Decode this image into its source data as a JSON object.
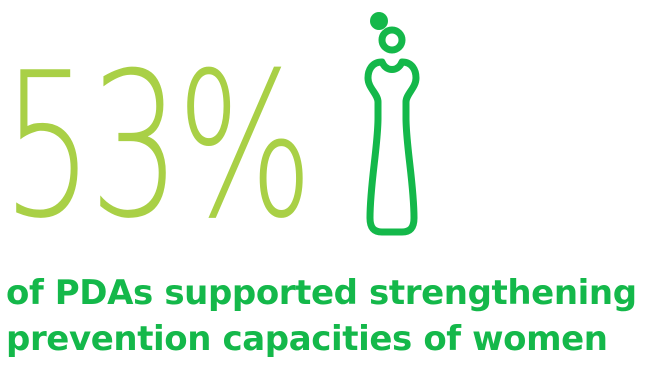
{
  "stat": {
    "value": "53%",
    "color": "#a9d046"
  },
  "icon": {
    "name": "woman-figure-icon",
    "color": "#14b84a"
  },
  "caption": {
    "line1": "of PDAs supported strengthening",
    "line2": "prevention capacities of women",
    "color": "#14b84a"
  }
}
